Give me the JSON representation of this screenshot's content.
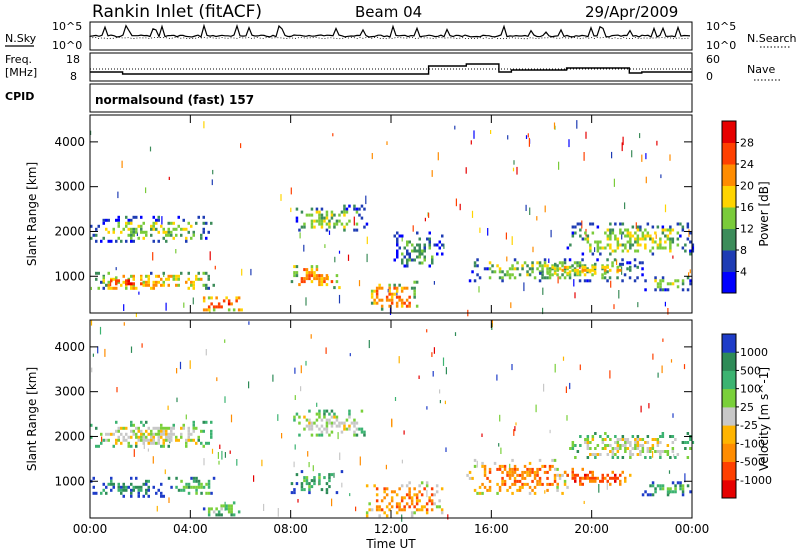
{
  "header": {
    "title": "Rankin Inlet (fitACF)",
    "beam": "Beam 04",
    "date": "29/Apr/2009"
  },
  "noise_panel": {
    "left_label": "N.Sky",
    "right_label": "N.Search",
    "left_ticks": [
      "10^5",
      "10^0"
    ],
    "right_ticks": [
      "10^5",
      "10^0"
    ]
  },
  "freq_panel": {
    "label_line1": "Freq.",
    "label_line2": "[MHz]",
    "left_ticks": [
      "18",
      "8"
    ],
    "right_ticks": [
      "60",
      "0"
    ],
    "right_label": "Nave"
  },
  "cpid": {
    "label": "CPID",
    "text": "normalsound (fast) 157"
  },
  "chart_data": [
    {
      "type": "heatmap",
      "name": "power",
      "xlabel": "Time UT",
      "ylabel": "Slant Range [km]",
      "x_tick_labels": [
        "00:00",
        "04:00",
        "08:00",
        "12:00",
        "16:00",
        "20:00",
        "00:00"
      ],
      "x_range_hours": [
        0,
        24
      ],
      "y_ticks": [
        1000,
        2000,
        3000,
        4000
      ],
      "y_range_km": [
        180,
        4600
      ],
      "colorbar_label": "Power [dB]",
      "colorbar_ticks": [
        "4",
        "8",
        "12",
        "16",
        "20",
        "24",
        "28"
      ],
      "colorbar_colors": [
        "#0000ff",
        "#1e3cb4",
        "#3c8c5a",
        "#7acb3a",
        "#ffd400",
        "#ff8c00",
        "#ff4000",
        "#e60000"
      ],
      "regions": [
        {
          "t0": 0.0,
          "t1": 4.8,
          "r0": 1750,
          "r1": 2350,
          "level": 3
        },
        {
          "t0": 0.0,
          "t1": 5.0,
          "r0": 700,
          "r1": 1100,
          "level": 4
        },
        {
          "t0": 0.5,
          "t1": 2.5,
          "r0": 800,
          "r1": 1000,
          "level": 6
        },
        {
          "t0": 4.5,
          "t1": 6.0,
          "r0": 250,
          "r1": 550,
          "level": 6
        },
        {
          "t0": 8.0,
          "t1": 10.0,
          "r0": 750,
          "r1": 1250,
          "level": 5
        },
        {
          "t0": 8.0,
          "t1": 11.0,
          "r0": 2000,
          "r1": 2600,
          "level": 3
        },
        {
          "t0": 11.0,
          "t1": 13.0,
          "r0": 250,
          "r1": 900,
          "level": 5
        },
        {
          "t0": 12.0,
          "t1": 14.0,
          "r0": 1200,
          "r1": 2000,
          "level": 2
        },
        {
          "t0": 15.0,
          "t1": 22.0,
          "r0": 900,
          "r1": 1400,
          "level": 3
        },
        {
          "t0": 17.5,
          "t1": 22.0,
          "r0": 1050,
          "r1": 1300,
          "level": 4
        },
        {
          "t0": 19.0,
          "t1": 24.0,
          "r0": 1500,
          "r1": 2200,
          "level": 3
        },
        {
          "t0": 22.0,
          "t1": 24.0,
          "r0": 700,
          "r1": 1000,
          "level": 3
        }
      ]
    },
    {
      "type": "heatmap",
      "name": "velocity",
      "xlabel": "Time UT",
      "ylabel": "Slant Range [km]",
      "x_tick_labels": [
        "00:00",
        "04:00",
        "08:00",
        "12:00",
        "16:00",
        "20:00",
        "00:00"
      ],
      "x_range_hours": [
        0,
        24
      ],
      "y_ticks": [
        1000,
        2000,
        3000,
        4000
      ],
      "y_range_km": [
        180,
        4600
      ],
      "colorbar_label": "Velocity [m s^-1]",
      "colorbar_ticks": [
        "1000",
        "500",
        "100",
        "25",
        "-25",
        "-100",
        "-500",
        "-1000"
      ],
      "colorbar_colors": [
        "#1e3cc8",
        "#2e8b57",
        "#3cb371",
        "#7ad03a",
        "#c8c8c8",
        "#ffb400",
        "#ff8c00",
        "#ff4000",
        "#e60000"
      ],
      "regions": [
        {
          "t0": 0.0,
          "t1": 4.8,
          "r0": 1750,
          "r1": 2350,
          "level": 4
        },
        {
          "t0": 0.0,
          "t1": 3.0,
          "r0": 650,
          "r1": 1100,
          "level": 1
        },
        {
          "t0": 3.0,
          "t1": 5.0,
          "r0": 700,
          "r1": 1100,
          "level": 2
        },
        {
          "t0": 4.5,
          "t1": 6.0,
          "r0": 250,
          "r1": 550,
          "level": 3
        },
        {
          "t0": 8.0,
          "t1": 11.0,
          "r0": 2000,
          "r1": 2600,
          "level": 4
        },
        {
          "t0": 8.0,
          "t1": 10.0,
          "r0": 750,
          "r1": 1250,
          "level": 2
        },
        {
          "t0": 11.0,
          "t1": 14.0,
          "r0": 250,
          "r1": 1000,
          "level": 6
        },
        {
          "t0": 15.0,
          "t1": 19.0,
          "r0": 700,
          "r1": 1500,
          "level": 6
        },
        {
          "t0": 18.5,
          "t1": 21.5,
          "r0": 900,
          "r1": 1300,
          "level": 7
        },
        {
          "t0": 19.0,
          "t1": 24.0,
          "r0": 1500,
          "r1": 2100,
          "level": 4
        },
        {
          "t0": 22.0,
          "t1": 24.0,
          "r0": 700,
          "r1": 1000,
          "level": 2
        }
      ]
    }
  ]
}
